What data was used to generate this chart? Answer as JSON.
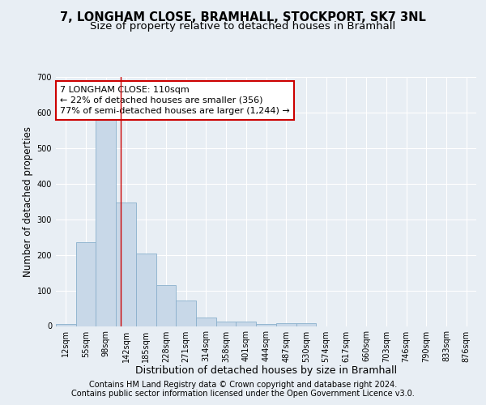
{
  "title1": "7, LONGHAM CLOSE, BRAMHALL, STOCKPORT, SK7 3NL",
  "title2": "Size of property relative to detached houses in Bramhall",
  "xlabel": "Distribution of detached houses by size in Bramhall",
  "ylabel": "Number of detached properties",
  "footnote1": "Contains HM Land Registry data © Crown copyright and database right 2024.",
  "footnote2": "Contains public sector information licensed under the Open Government Licence v3.0.",
  "bin_labels": [
    "12sqm",
    "55sqm",
    "98sqm",
    "142sqm",
    "185sqm",
    "228sqm",
    "271sqm",
    "314sqm",
    "358sqm",
    "401sqm",
    "444sqm",
    "487sqm",
    "530sqm",
    "574sqm",
    "617sqm",
    "660sqm",
    "703sqm",
    "746sqm",
    "790sqm",
    "833sqm",
    "876sqm"
  ],
  "bar_heights": [
    5,
    235,
    590,
    348,
    203,
    116,
    72,
    25,
    13,
    12,
    5,
    8,
    8,
    0,
    0,
    0,
    0,
    0,
    0,
    0,
    0
  ],
  "bar_color": "#c8d8e8",
  "bar_edgecolor": "#8ab0cc",
  "vline_x": 2.72,
  "vline_color": "#cc0000",
  "annotation_text": "7 LONGHAM CLOSE: 110sqm\n← 22% of detached houses are smaller (356)\n77% of semi-detached houses are larger (1,244) →",
  "annotation_box_color": "#cc0000",
  "ylim": [
    0,
    700
  ],
  "yticks": [
    0,
    100,
    200,
    300,
    400,
    500,
    600,
    700
  ],
  "background_color": "#e8eef4",
  "plot_background": "#e8eef4",
  "grid_color": "#ffffff",
  "title1_fontsize": 10.5,
  "title2_fontsize": 9.5,
  "xlabel_fontsize": 9,
  "ylabel_fontsize": 8.5,
  "tick_fontsize": 7,
  "annotation_fontsize": 8,
  "footnote_fontsize": 7
}
